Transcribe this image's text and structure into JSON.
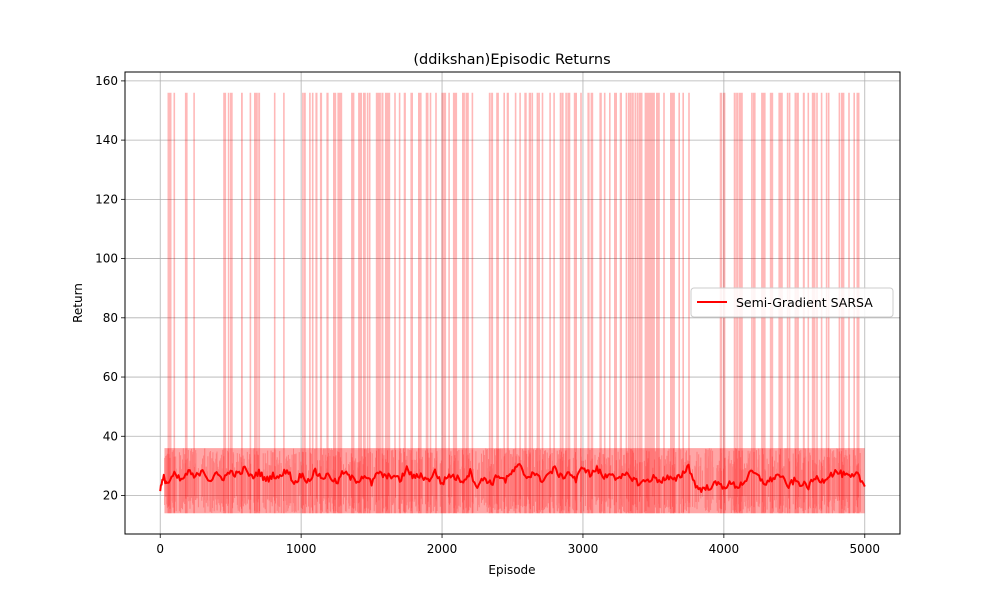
{
  "chart_data": {
    "type": "line",
    "title": "(ddikshan)Episodic Returns",
    "xlabel": "Episode",
    "ylabel": "Return",
    "xlim": [
      -250,
      5250
    ],
    "ylim": [
      7,
      163
    ],
    "x_ticks": [
      0,
      1000,
      2000,
      3000,
      4000,
      5000
    ],
    "y_ticks": [
      20,
      40,
      60,
      80,
      100,
      120,
      140,
      160
    ],
    "grid": true,
    "legend_position": "center-right",
    "series": [
      {
        "name": "Semi-Gradient SARSA",
        "color": "#ff0000",
        "n_episodes": 5000,
        "raw_min": 14,
        "raw_max": 156,
        "raw_typical_range": [
          14,
          36
        ],
        "smoothed_mean": {
          "x": [
            0,
            25,
            50,
            100,
            150,
            200,
            250,
            300,
            350,
            400,
            450,
            500,
            550,
            600,
            650,
            700,
            750,
            800,
            850,
            900,
            950,
            1000,
            1050,
            1100,
            1150,
            1200,
            1250,
            1300,
            1350,
            1400,
            1450,
            1500,
            1550,
            1600,
            1650,
            1700,
            1750,
            1800,
            1850,
            1900,
            1950,
            2000,
            2050,
            2100,
            2150,
            2200,
            2250,
            2300,
            2350,
            2400,
            2450,
            2500,
            2550,
            2600,
            2650,
            2700,
            2750,
            2800,
            2850,
            2900,
            2950,
            3000,
            3050,
            3100,
            3150,
            3200,
            3250,
            3300,
            3350,
            3400,
            3450,
            3500,
            3550,
            3600,
            3650,
            3700,
            3750,
            3800,
            3850,
            3900,
            3950,
            4000,
            4050,
            4100,
            4150,
            4200,
            4250,
            4300,
            4350,
            4400,
            4450,
            4500,
            4550,
            4600,
            4650,
            4700,
            4750,
            4800,
            4850,
            4900,
            4950,
            5000
          ],
          "y": [
            22,
            26,
            24,
            27,
            25,
            28,
            26,
            29,
            25,
            27,
            26,
            28,
            27,
            29,
            26,
            28,
            25,
            27,
            26,
            29,
            24,
            27,
            25,
            28,
            26,
            27,
            24,
            28,
            26,
            25,
            27,
            24,
            28,
            26,
            27,
            25,
            29,
            26,
            27,
            25,
            28,
            24,
            27,
            26,
            25,
            28,
            23,
            26,
            24,
            27,
            25,
            28,
            30,
            26,
            28,
            25,
            27,
            29,
            26,
            28,
            25,
            30,
            27,
            29,
            26,
            28,
            25,
            27,
            26,
            24,
            25,
            26,
            25,
            26,
            25,
            27,
            30,
            23,
            22,
            23,
            24,
            23,
            24,
            23,
            25,
            28,
            26,
            24,
            26,
            27,
            23,
            25,
            24,
            23,
            26,
            25,
            27,
            28,
            27,
            26,
            27,
            23
          ]
        }
      }
    ]
  }
}
